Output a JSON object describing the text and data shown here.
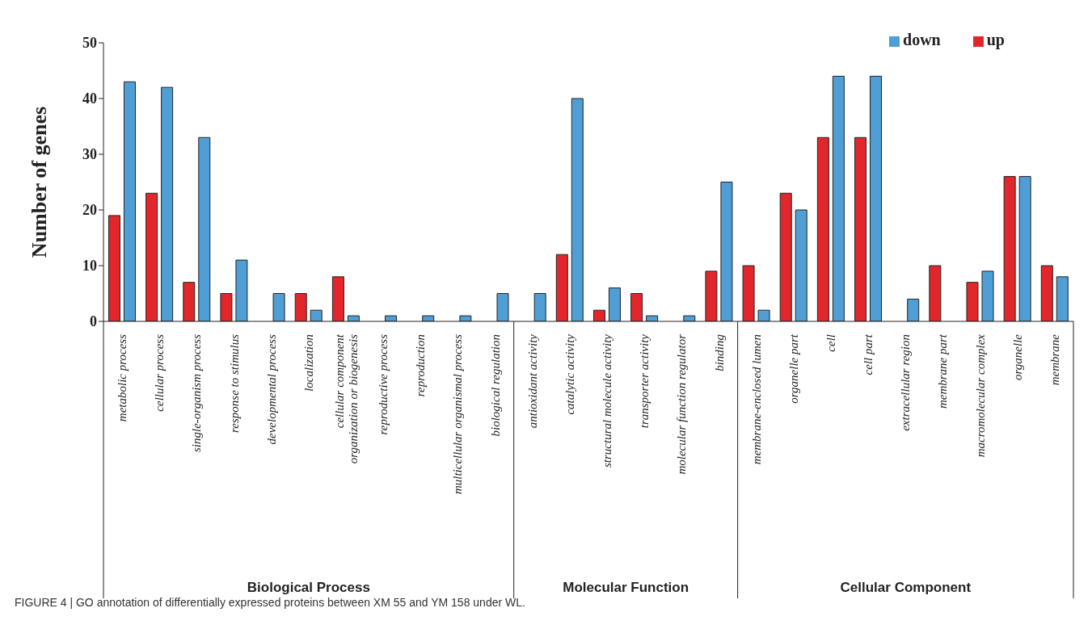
{
  "chart_data": {
    "type": "bar",
    "ylabel": "Number of genes",
    "categories": [
      "metabolic process",
      "cellular process",
      "single-organism process",
      "response to stimulus",
      "developmental process",
      "localization",
      "cellular component organization or biogenesis",
      "reproductive process",
      "reproduction",
      "multicellular organismal process",
      "biological regulation",
      "antioxidant activity",
      "catalytic activity",
      "structural molecule activity",
      "transporter activity",
      "molecular function regulator",
      "binding",
      "membrane-enclosed lumen",
      "organelle part",
      "cell",
      "cell part",
      "extracellular region",
      "membrane part",
      "macromolecular complex",
      "organelle",
      "membrane"
    ],
    "series": [
      {
        "name": "up",
        "color": "#e3262b",
        "values": [
          19,
          23,
          7,
          5,
          0,
          5,
          8,
          0,
          0,
          0,
          0,
          0,
          12,
          2,
          5,
          0,
          9,
          10,
          23,
          33,
          33,
          0,
          10,
          7,
          26,
          10
        ]
      },
      {
        "name": "down",
        "color": "#4f9fd6",
        "values": [
          43,
          42,
          33,
          11,
          5,
          2,
          1,
          1,
          1,
          1,
          5,
          5,
          40,
          6,
          1,
          1,
          25,
          2,
          20,
          44,
          44,
          4,
          0,
          9,
          26,
          8
        ]
      }
    ],
    "ylim": [
      0,
      50
    ],
    "yticks": [
      0,
      10,
      20,
      30,
      40,
      50
    ],
    "grid": false,
    "legend": "top right",
    "annotations": [
      "Biological Process",
      "Molecular Function",
      "Cellular Component",
      "FIGURE 4 | GO annotation of differentially expressed proteins between XM 55 and YM 158 under WL."
    ]
  }
}
